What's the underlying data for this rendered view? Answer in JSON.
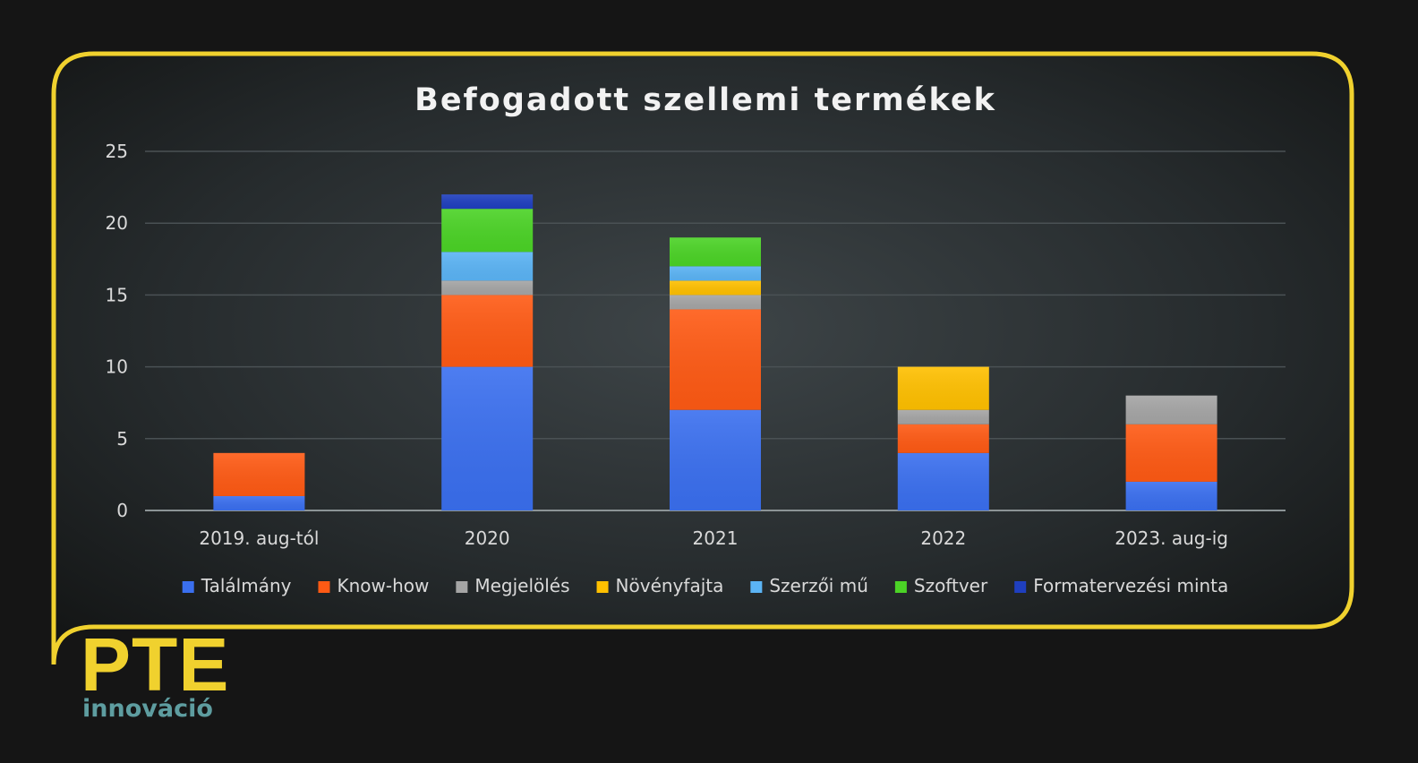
{
  "chart_data": {
    "type": "bar",
    "stacked": true,
    "title": "Befogadott szellemi termékek",
    "categories": [
      "2019. aug-tól",
      "2020",
      "2021",
      "2022",
      "2023. aug-ig"
    ],
    "series": [
      {
        "name": "Találmány",
        "color": "#3A6FEF",
        "values": [
          1,
          10,
          7,
          4,
          2
        ]
      },
      {
        "name": "Know-how",
        "color": "#FF5A14",
        "values": [
          3,
          5,
          7,
          2,
          4
        ]
      },
      {
        "name": "Megjelölés",
        "color": "#A5A5A5",
        "values": [
          0,
          1,
          1,
          1,
          2
        ]
      },
      {
        "name": "Növényfajta",
        "color": "#FFC000",
        "values": [
          0,
          0,
          1,
          3,
          0
        ]
      },
      {
        "name": "Szerzői mű",
        "color": "#5BB4F5",
        "values": [
          0,
          2,
          1,
          0,
          0
        ]
      },
      {
        "name": "Szoftver",
        "color": "#4BD326",
        "values": [
          0,
          3,
          2,
          0,
          0
        ]
      },
      {
        "name": "Formatervezési minta",
        "color": "#1F3FBF",
        "values": [
          0,
          1,
          0,
          0,
          0
        ]
      }
    ],
    "ylim": [
      0,
      25
    ],
    "yticks": [
      0,
      5,
      10,
      15,
      20,
      25
    ],
    "grid": true,
    "legend": "bottom"
  },
  "logo": {
    "main": "PTE",
    "sub": "innováció"
  },
  "colors": {
    "frame": "#F0D12E",
    "background": "#151515"
  }
}
